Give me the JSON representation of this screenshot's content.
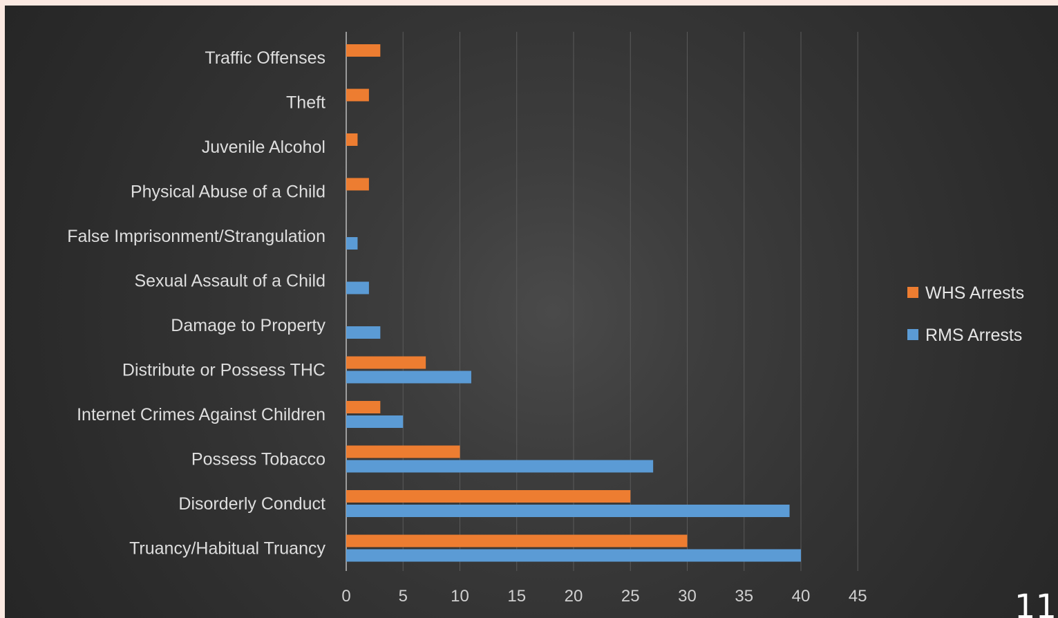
{
  "slide": {
    "page_number": "11"
  },
  "colors": {
    "whs": "#ed7d31",
    "rms": "#5b9bd5",
    "grid": "#5a5a5a",
    "axis": "#bfbfbf",
    "text": "#dedede"
  },
  "chart_data": {
    "type": "bar",
    "orientation": "horizontal",
    "categories": [
      "Traffic Offenses",
      "Theft",
      "Juvenile Alcohol",
      "Physical Abuse of a Child",
      "False Imprisonment/Strangulation",
      "Sexual Assault of a Child",
      "Damage to Property",
      "Distribute or Possess THC",
      "Internet Crimes Against Children",
      "Possess Tobacco",
      "Disorderly Conduct",
      "Truancy/Habitual Truancy"
    ],
    "series": [
      {
        "name": "WHS Arrests",
        "color": "#ed7d31",
        "values": [
          3,
          2,
          1,
          2,
          0,
          0,
          0,
          7,
          3,
          10,
          25,
          30
        ]
      },
      {
        "name": "RMS Arrests",
        "color": "#5b9bd5",
        "values": [
          0,
          0,
          0,
          0,
          1,
          2,
          3,
          11,
          5,
          27,
          39,
          40
        ]
      }
    ],
    "xlim": [
      0,
      45
    ],
    "xticks": [
      "0",
      "5",
      "10",
      "15",
      "20",
      "25",
      "30",
      "35",
      "40",
      "45"
    ],
    "grid": true,
    "legend_position": "right",
    "title": "",
    "xlabel": "",
    "ylabel": ""
  }
}
